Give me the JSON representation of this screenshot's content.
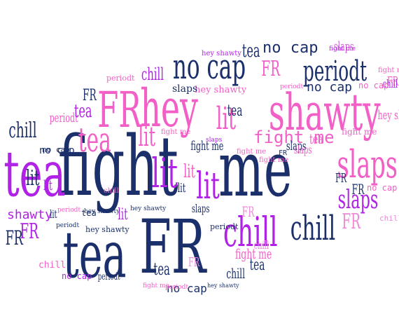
{
  "palette": {
    "navy": "#1b2f6b",
    "pink": "#f25fc6",
    "purple": "#b023e6",
    "light_pink": "#ee88d8",
    "magenta": "#d25ad9"
  },
  "words": [
    "fight",
    "me",
    "tea",
    "FR",
    "hey",
    "shawty",
    "FR",
    "no cap",
    "periodt",
    "chill",
    "chill",
    "lit",
    "lit",
    "slaps",
    "slaps",
    "tea",
    "tea",
    "lit",
    "lit",
    "no cap",
    "FR",
    "periodt",
    "tea",
    "hey shawty",
    "fight me",
    "fight me",
    "periodt",
    "chill",
    "chill",
    "slaps",
    "no cap",
    "tea",
    "FR",
    "FR",
    "shawty",
    "periodt",
    "FR",
    "FR",
    "chill",
    "fight me",
    "no cap",
    "hey shawty",
    "fight me",
    "slaps",
    "tea",
    "tea",
    "lit",
    "lit",
    "lit",
    "lit",
    "FR",
    "FR",
    "FR",
    "chill",
    "chill",
    "hey shawty",
    "hey shawty",
    "fight me",
    "fight me",
    "periodt",
    "periodt",
    "no cap",
    "no cap",
    "slaps",
    "slaps",
    "tea",
    "lit",
    "periodt",
    "fight me",
    "chill",
    "chill",
    "FR",
    "hey shawty",
    "no cap",
    "no cap",
    "tea",
    "periodt",
    "fight me",
    "hey shawty",
    "slaps",
    "lit",
    "tea",
    "FR",
    "fight me",
    "chill",
    "no cap",
    "periodt",
    "hey shawty",
    "fight me",
    "slaps",
    "FR"
  ]
}
